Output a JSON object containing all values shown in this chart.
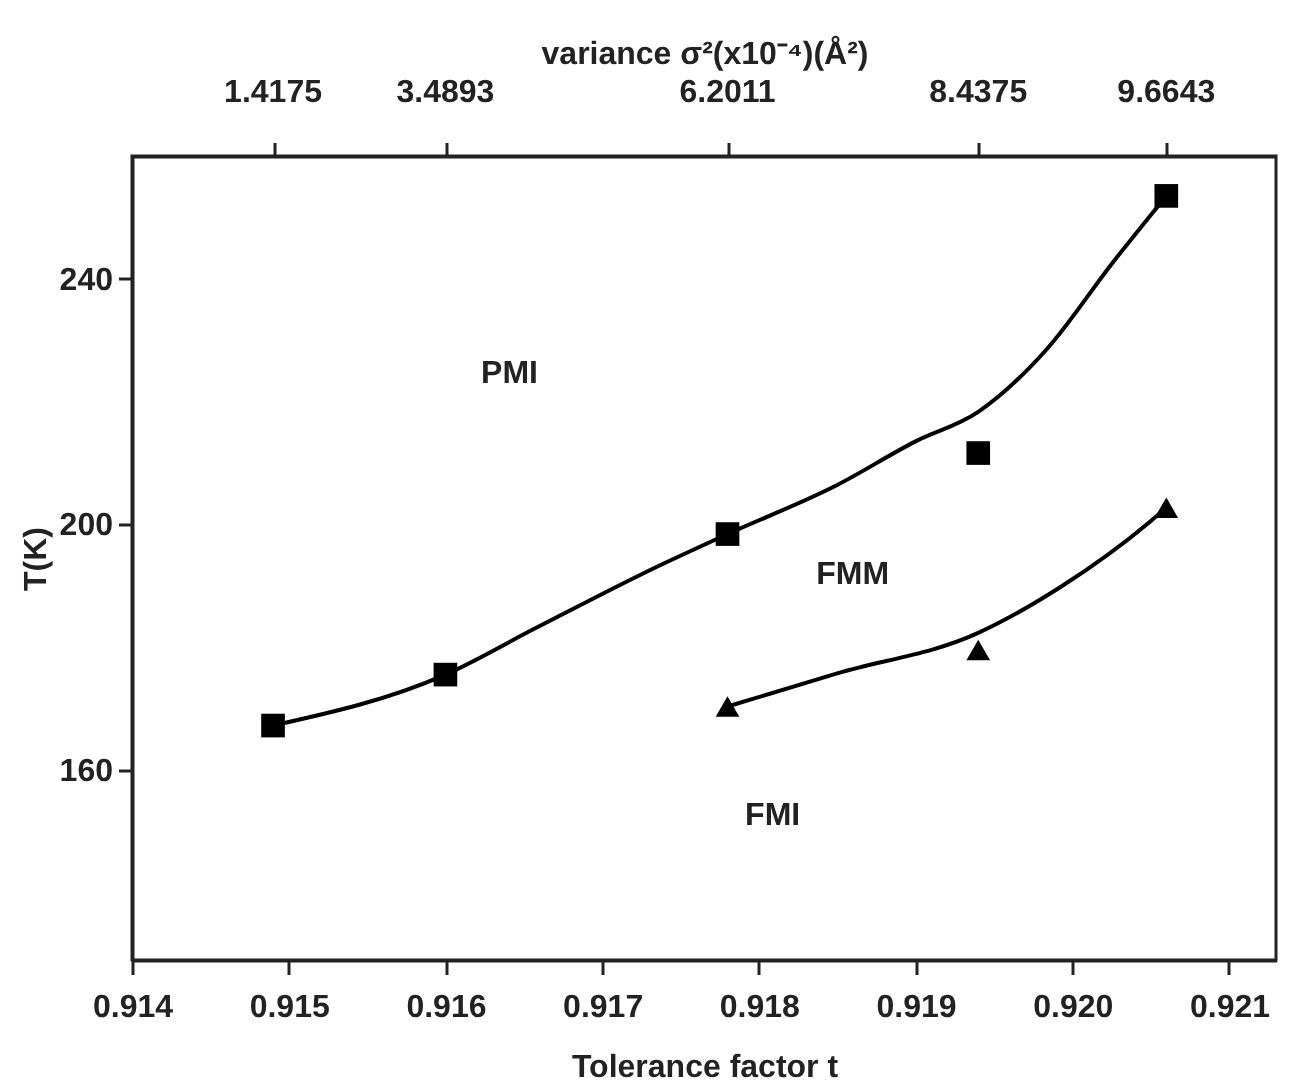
{
  "chart_data": {
    "type": "scatter",
    "xlabel": "Tolerance factor t",
    "ylabel": "T(K)",
    "x2label": "variance σ²(x10⁻⁴)(Å²)",
    "xlim": [
      0.914,
      0.9213
    ],
    "xticks": [
      0.914,
      0.915,
      0.916,
      0.917,
      0.918,
      0.919,
      {
        "value": 0.92,
        "label": "0.920"
      },
      0.921
    ],
    "ylim": [
      129,
      260
    ],
    "yticks": [
      160,
      200,
      240
    ],
    "grid": false,
    "series": [
      {
        "type": "line",
        "color": "#000000",
        "marker": "none",
        "x": [
          0.9149,
          0.916,
          0.91657,
          0.91736,
          0.9178,
          0.9185,
          0.919,
          0.9194,
          0.91984,
          0.92026,
          0.9206
        ],
        "values": [
          167.2,
          175.5,
          183,
          193.2,
          198.4,
          206.4,
          213.5,
          218.3,
          228.6,
          242.7,
          253.5
        ]
      },
      {
        "type": "line",
        "color": "#000000",
        "marker": "none",
        "x": [
          0.9178,
          0.9185,
          0.9194,
          0.91992,
          0.9205,
          0.9206
        ],
        "values": [
          170.3,
          175.7,
          182.3,
          189.7,
          200.5,
          202.7
        ]
      },
      {
        "type": "scatter",
        "color": "#000000",
        "marker": "square",
        "x": [
          0.9149,
          0.916,
          0.9178,
          0.9194,
          0.9206
        ],
        "values": [
          167.2,
          175.5,
          198.4,
          211.6,
          253.5
        ]
      },
      {
        "type": "scatter",
        "color": "#000000",
        "marker": "triangle",
        "x": [
          0.9178,
          0.9194,
          0.9206
        ],
        "values": [
          170.3,
          179.5,
          202.7
        ]
      }
    ],
    "annotations": [
      "PMI",
      "FMM",
      "FMI",
      {
        "text": "1.4175",
        "x": 0.9149
      },
      {
        "text": "3.4893",
        "x": 0.916
      },
      {
        "text": "6.2011",
        "x": 0.9178
      },
      {
        "text": "8.4375",
        "x": 0.9194
      },
      {
        "text": "9.6643",
        "x": 0.9206
      }
    ]
  }
}
